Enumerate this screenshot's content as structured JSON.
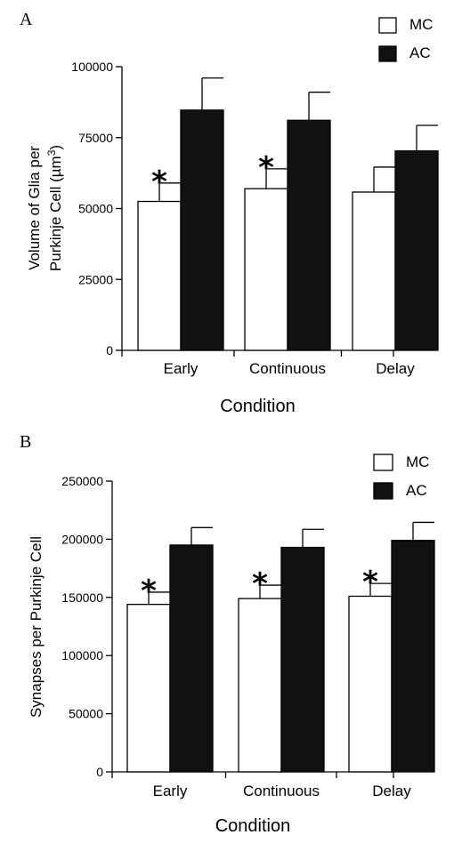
{
  "chart_data": [
    {
      "panel": "A",
      "type": "bar",
      "categories": [
        "Early",
        "Continuous",
        "Delay"
      ],
      "series": [
        {
          "name": "MC",
          "values": [
            52500,
            57000,
            55800
          ],
          "errors": [
            6500,
            7000,
            8800
          ],
          "color": "#ffffff"
        },
        {
          "name": "AC",
          "values": [
            84700,
            81100,
            70300
          ],
          "errors": [
            11300,
            9900,
            9000
          ],
          "color": "#111111"
        }
      ],
      "significance": [
        "*",
        "*",
        ""
      ],
      "xlabel": "Condition",
      "ylabel_lines": [
        "Volume of Glia per",
        "Purkinje Cell (µm",
        "3",
        ")"
      ],
      "ylim": [
        0,
        100000
      ],
      "yticks": [
        0,
        25000,
        50000,
        75000,
        100000
      ],
      "legend": "top-right"
    },
    {
      "panel": "B",
      "type": "bar",
      "categories": [
        "Early",
        "Continuous",
        "Delay"
      ],
      "series": [
        {
          "name": "MC",
          "values": [
            144000,
            149000,
            151000
          ],
          "errors": [
            10500,
            11500,
            11000
          ],
          "color": "#ffffff"
        },
        {
          "name": "AC",
          "values": [
            195000,
            193000,
            199000
          ],
          "errors": [
            15000,
            15500,
            15500
          ],
          "color": "#111111"
        }
      ],
      "significance": [
        "*",
        "*",
        "*"
      ],
      "xlabel": "Condition",
      "ylabel": "Synapses per Purkinje Cell",
      "ylim": [
        0,
        250000
      ],
      "yticks": [
        0,
        50000,
        100000,
        150000,
        200000,
        250000
      ],
      "legend": "top-right"
    }
  ]
}
